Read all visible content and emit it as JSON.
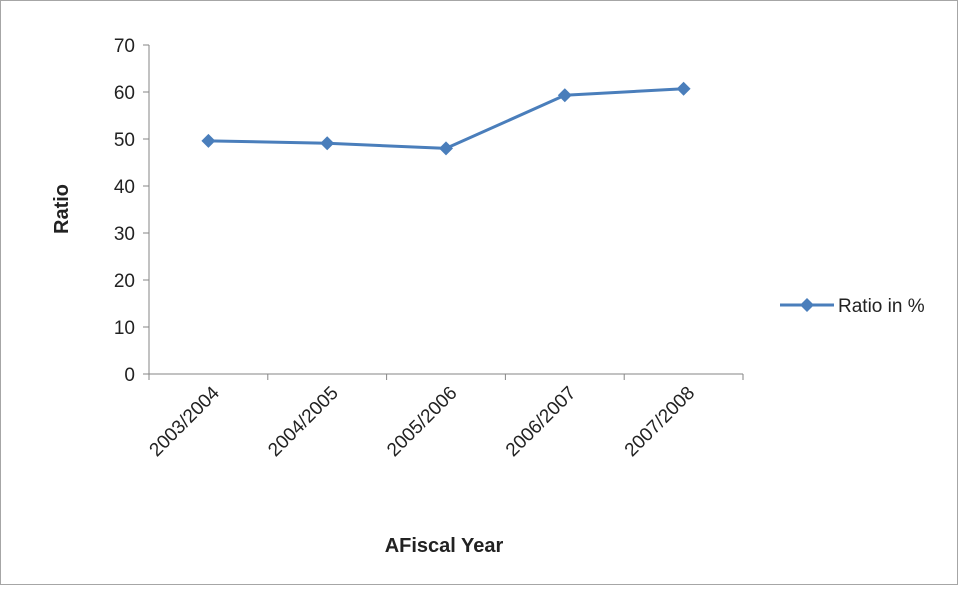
{
  "chart_data": {
    "type": "line",
    "title": "",
    "xlabel": "AFiscal Year",
    "ylabel": "Ratio",
    "categories": [
      "2003/2004",
      "2004/2005",
      "2005/2006",
      "2006/2007",
      "2007/2008"
    ],
    "series": [
      {
        "name": "Ratio in %",
        "values": [
          49.6,
          49.1,
          48.0,
          59.3,
          60.7
        ],
        "color": "#4a7ebb",
        "marker": "diamond"
      }
    ],
    "ylim": [
      0,
      70
    ],
    "yticks": [
      0,
      10,
      20,
      30,
      40,
      50,
      60,
      70
    ],
    "grid": false,
    "legend_position": "right"
  }
}
